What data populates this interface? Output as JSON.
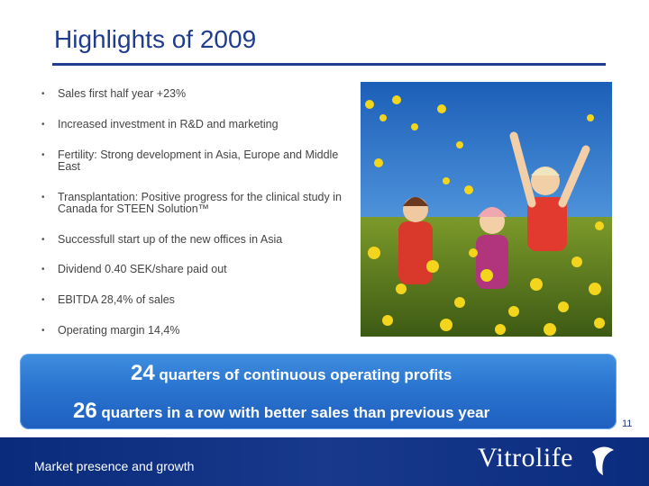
{
  "slide": {
    "title": "Highlights of 2009",
    "bullets": [
      {
        "text": "Sales first half year +23%"
      },
      {
        "text": "Increased investment in R&D and marketing"
      },
      {
        "text": "Fertility: Strong development in Asia, Europe and Middle East"
      },
      {
        "text": "Transplantation: Positive progress for the clinical study in Canada for STEEN Solution™"
      },
      {
        "text": "Successfull start up of the new offices in Asia"
      },
      {
        "text": "Dividend 0.40 SEK/share paid out"
      },
      {
        "text": "EBITDA 28,4% of sales"
      },
      {
        "text": "Operating margin 14,4%"
      }
    ],
    "bullet_glyph": "•",
    "banner": {
      "line1_number": "24",
      "line1_text": " quarters of continuous operating profits",
      "line2_number": "26",
      "line2_text": " quarters in a row with better sales than previous year"
    },
    "page_number": "11"
  },
  "footer": {
    "section_text": "Market presence and growth",
    "logo_text": "Vitrolife"
  },
  "colors": {
    "title": "#1f3c8f",
    "banner": "#2a74cf",
    "footer": "#0b2c7e"
  }
}
